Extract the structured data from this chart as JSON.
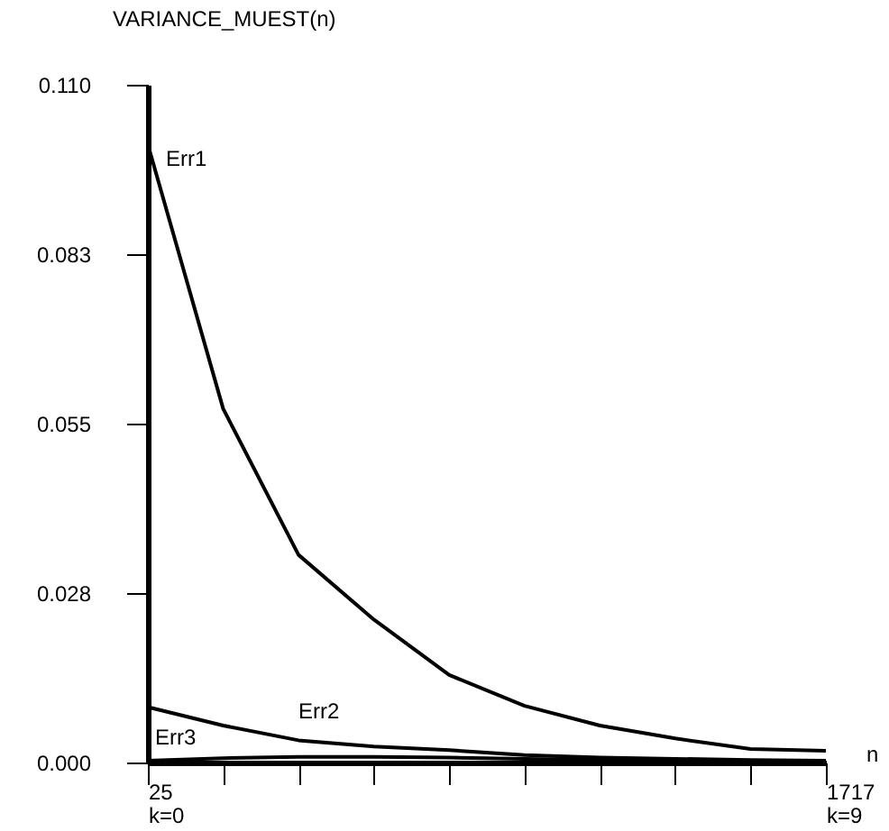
{
  "chart_data": {
    "type": "line",
    "ylabel": "VARIANCE_MUEST(n)",
    "xlabel": "n",
    "categories": [
      "25\nk=0",
      null,
      null,
      null,
      null,
      null,
      null,
      null,
      null,
      "1717\nk=9"
    ],
    "series": [
      {
        "name": "Err1",
        "color": "#000000",
        "values": [
          0.1003,
          0.0574,
          0.0337,
          0.0232,
          0.0142,
          0.0092,
          0.006,
          0.0039,
          0.0022,
          0.0019
        ]
      },
      {
        "name": "Err2",
        "color": "#000000",
        "values": [
          0.009,
          0.006,
          0.0036,
          0.0026,
          0.002,
          0.0012,
          0.0008,
          0.0006,
          0.0004,
          0.0003
        ]
      },
      {
        "name": "Err3",
        "color": "#000000",
        "values": [
          0.0003,
          0.0007,
          0.0009,
          0.0009,
          0.0008,
          0.0006,
          0.0004,
          0.0003,
          0.0002,
          0.0001
        ]
      }
    ],
    "ylim": [
      0,
      0.11
    ],
    "yticks": [
      {
        "value": 0,
        "label": "0.000"
      },
      {
        "value": 0.0275,
        "label": "0.028"
      },
      {
        "value": 0.055,
        "label": "0.055"
      },
      {
        "value": 0.0825,
        "label": "0.083"
      },
      {
        "value": 0.11,
        "label": "0.110"
      }
    ],
    "grid": false,
    "legend": false,
    "marker": "none",
    "line_style": "solid"
  }
}
